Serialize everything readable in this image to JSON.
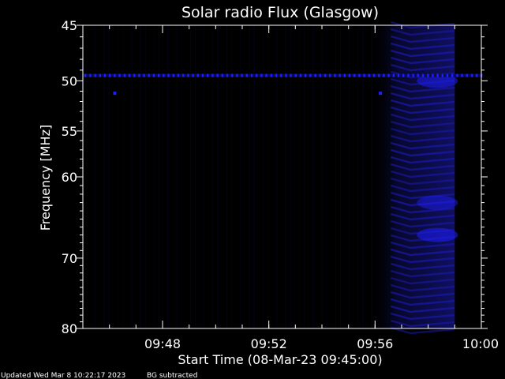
{
  "chart_data": {
    "type": "heatmap",
    "title": "Solar radio Flux (Glasgow)",
    "xlabel": "Start Time (08-Mar-23 09:45:00)",
    "ylabel": "Frequency [MHz]",
    "xlim": [
      "09:45",
      "10:00"
    ],
    "ylim": [
      80,
      45
    ],
    "y_scale": "log",
    "x_ticks": [
      "09:48",
      "09:52",
      "09:56",
      "10:00"
    ],
    "y_ticks": [
      45,
      50,
      55,
      60,
      70,
      80
    ],
    "data_end_time": "09:59",
    "colormap": [
      "#000000",
      "#0a0a55",
      "#1e1eff"
    ],
    "features": [
      {
        "kind": "rfi_band",
        "frequency": 49.5,
        "time_start": "09:45",
        "time_end": "10:00"
      },
      {
        "kind": "burst_region",
        "time_start": "09:56",
        "time_end": "09:59",
        "frequency_min": 45,
        "frequency_max": 80
      },
      {
        "kind": "point",
        "time": "09:46.2",
        "frequency": 51.2
      },
      {
        "kind": "point",
        "time": "09:56.2",
        "frequency": 51.2
      }
    ]
  },
  "footer": {
    "updated": "Updated Wed Mar  8 10:22:17 2023",
    "note": "BG subtracted"
  },
  "colors": {
    "background": "#000000",
    "axis": "#ffffff",
    "signal": "#1e1eff"
  }
}
